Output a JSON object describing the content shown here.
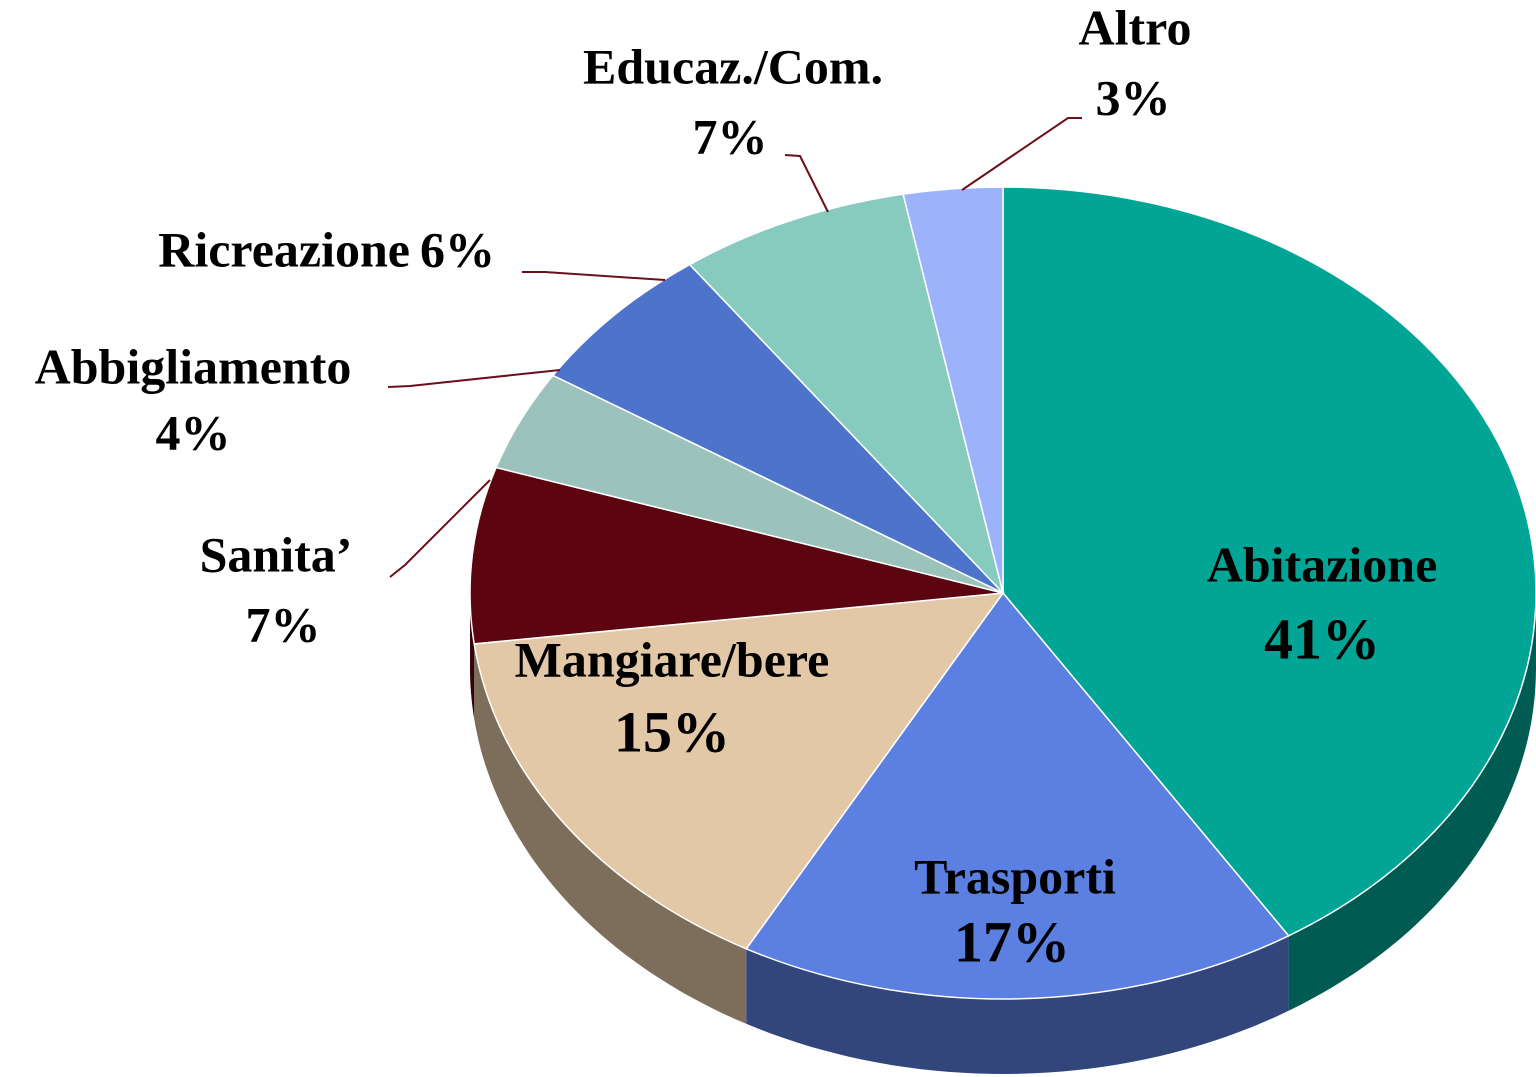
{
  "chart_data": {
    "type": "pie",
    "categories": [
      "Abitazione",
      "Trasporti",
      "Mangiare/bere",
      "Sanita’",
      "Abbigliamento",
      "Ricreazione",
      "Educaz./Com.",
      "Altro"
    ],
    "values": [
      41,
      17,
      15,
      7,
      4,
      6,
      7,
      3
    ],
    "value_labels": [
      "41%",
      "17%",
      "15%",
      "7%",
      "4%",
      "6%",
      "7%",
      "3%"
    ],
    "colors": [
      "#00a595",
      "#5b80e2",
      "#e3c8a8",
      "#5c0510",
      "#9cc3bb",
      "#4d73cb",
      "#87cbbf",
      "#9db2fc"
    ]
  }
}
